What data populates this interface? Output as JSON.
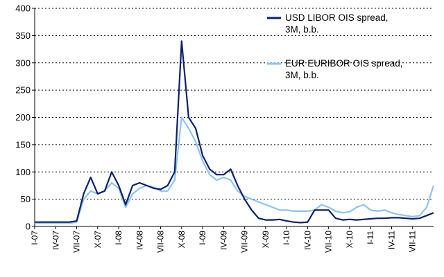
{
  "chart_data": {
    "type": "line",
    "title": "",
    "xlabel": "",
    "ylabel": "",
    "ylim": [
      0,
      400
    ],
    "yticks": [
      0,
      50,
      100,
      150,
      200,
      250,
      300,
      350,
      400
    ],
    "grid": "horizontal-dashed",
    "legend_position": "top-right",
    "x_tick_labels": [
      "I-07",
      "IV-07",
      "VII-07",
      "X-07",
      "I-08",
      "IV-08",
      "VII-08",
      "X-08",
      "I-09",
      "IV-09",
      "VII-09",
      "X-09",
      "I-10",
      "IV-10",
      "VII-10",
      "X-10",
      "I-11",
      "IV-11",
      "VII-11"
    ],
    "x": [
      "2007-01",
      "2007-02",
      "2007-03",
      "2007-04",
      "2007-05",
      "2007-06",
      "2007-07",
      "2007-08",
      "2007-09",
      "2007-10",
      "2007-11",
      "2007-12",
      "2008-01",
      "2008-02",
      "2008-03",
      "2008-04",
      "2008-05",
      "2008-06",
      "2008-07",
      "2008-08",
      "2008-09",
      "2008-10",
      "2008-11",
      "2008-12",
      "2009-01",
      "2009-02",
      "2009-03",
      "2009-04",
      "2009-05",
      "2009-06",
      "2009-07",
      "2009-08",
      "2009-09",
      "2009-10",
      "2009-11",
      "2009-12",
      "2010-01",
      "2010-02",
      "2010-03",
      "2010-04",
      "2010-05",
      "2010-06",
      "2010-07",
      "2010-08",
      "2010-09",
      "2010-10",
      "2010-11",
      "2010-12",
      "2011-01",
      "2011-02",
      "2011-03",
      "2011-04",
      "2011-05",
      "2011-06",
      "2011-07",
      "2011-08",
      "2011-09",
      "2011-10"
    ],
    "series": [
      {
        "name": "USD LIBOR OIS spread, 3M, b.b.",
        "color": "#0d1f6e",
        "values": [
          8,
          8,
          8,
          8,
          8,
          8,
          10,
          60,
          90,
          60,
          65,
          100,
          75,
          40,
          75,
          80,
          75,
          70,
          68,
          75,
          100,
          340,
          200,
          180,
          130,
          105,
          95,
          95,
          105,
          75,
          50,
          30,
          15,
          12,
          12,
          13,
          10,
          8,
          7,
          8,
          30,
          30,
          30,
          15,
          12,
          13,
          12,
          13,
          14,
          15,
          15,
          16,
          16,
          15,
          14,
          15,
          20,
          25
        ]
      },
      {
        "name": "EUR EURIBOR OIS spread, 3M, b.b.",
        "color": "#8cc4f0",
        "values": [
          6,
          6,
          6,
          6,
          6,
          6,
          8,
          50,
          65,
          60,
          65,
          80,
          70,
          35,
          60,
          70,
          75,
          72,
          65,
          65,
          85,
          200,
          180,
          155,
          120,
          95,
          85,
          90,
          85,
          65,
          55,
          50,
          45,
          40,
          35,
          30,
          30,
          28,
          28,
          28,
          30,
          40,
          35,
          28,
          25,
          27,
          35,
          40,
          30,
          28,
          30,
          25,
          22,
          20,
          18,
          20,
          35,
          75
        ]
      }
    ],
    "legend": [
      {
        "lines": [
          "USD LIBOR OIS spread,",
          "3M, b.b."
        ],
        "color": "#0d1f6e"
      },
      {
        "lines": [
          "EUR EURIBOR OIS spread,",
          "3M, b.b."
        ],
        "color": "#8cc4f0"
      }
    ]
  }
}
